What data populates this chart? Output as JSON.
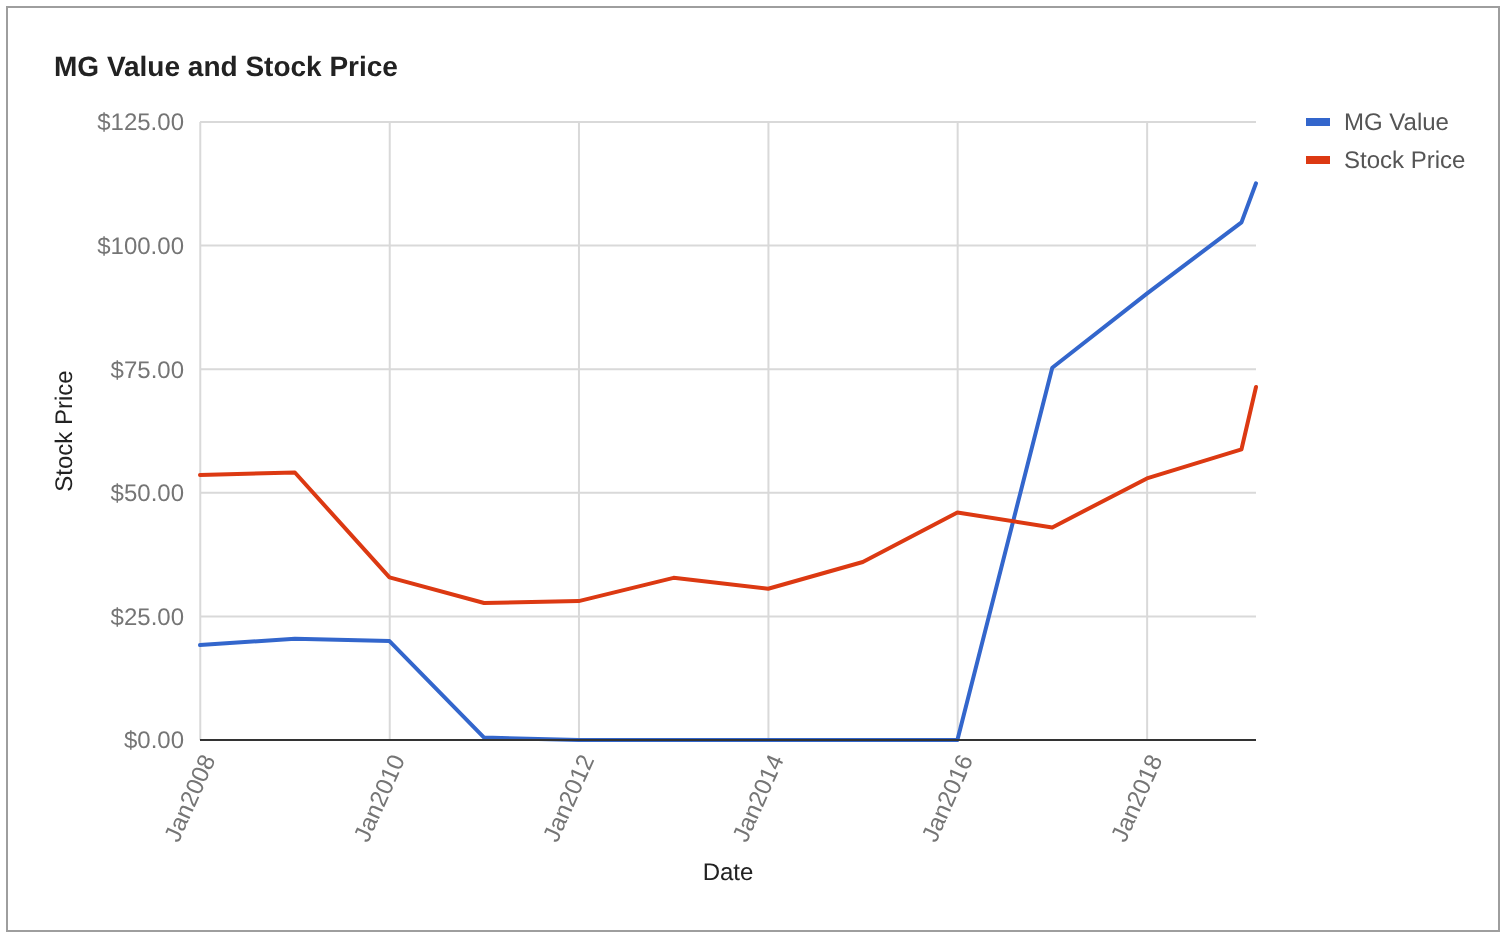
{
  "chart_data": {
    "type": "line",
    "title": "MG Value and Stock Price",
    "xlabel": "Date",
    "ylabel": "Stock Price",
    "x": [
      "2007-12-31",
      "2008-12-31",
      "2009-12-31",
      "2010-12-31",
      "2011-12-31",
      "2012-12-31",
      "2013-12-31",
      "2014-12-31",
      "2015-12-31",
      "2016-12-31",
      "2017-12-31",
      "2018-12-31",
      "2019-02-25"
    ],
    "series": [
      {
        "name": "MG Value",
        "color": "#3366cc",
        "values": [
          19.2,
          20.5,
          20.0,
          0.5,
          0,
          0,
          0,
          0,
          0,
          75.3,
          90.3,
          104.7,
          112.6
        ]
      },
      {
        "name": "Stock Price",
        "color": "#dc3912",
        "values": [
          53.6,
          54.1,
          32.9,
          27.7,
          28.1,
          32.8,
          30.6,
          36.0,
          46.0,
          43.0,
          52.9,
          58.8,
          71.4
        ]
      }
    ],
    "xlim": [
      "2007-12-31",
      "2019-02-25"
    ],
    "xticks": [
      {
        "value": "2008-01-01",
        "label": "Jan2008"
      },
      {
        "value": "2010-01-01",
        "label": "Jan2010"
      },
      {
        "value": "2012-01-01",
        "label": "Jan2012"
      },
      {
        "value": "2014-01-01",
        "label": "Jan2014"
      },
      {
        "value": "2016-01-01",
        "label": "Jan2016"
      },
      {
        "value": "2018-01-01",
        "label": "Jan2018"
      }
    ],
    "ylim": [
      0,
      125
    ],
    "yticks": [
      {
        "value": 0,
        "label": "$0.00"
      },
      {
        "value": 25,
        "label": "$25.00"
      },
      {
        "value": 50,
        "label": "$50.00"
      },
      {
        "value": 75,
        "label": "$75.00"
      },
      {
        "value": 100,
        "label": "$100.00"
      },
      {
        "value": 125,
        "label": "$125.00"
      }
    ],
    "grid": true,
    "legend": "top right"
  }
}
